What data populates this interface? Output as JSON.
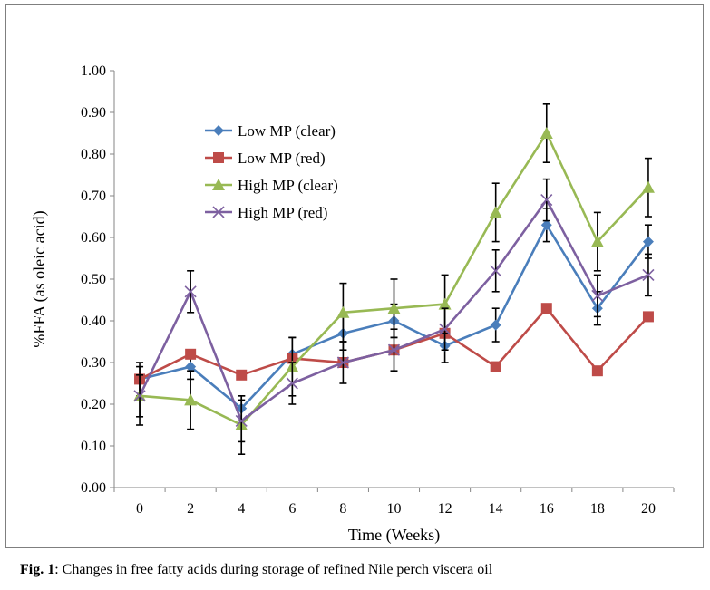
{
  "chart_data": {
    "type": "line",
    "xlabel": "Time (Weeks)",
    "ylabel": "%FFA (as oleic acid)",
    "x": [
      0,
      2,
      4,
      6,
      8,
      10,
      12,
      14,
      16,
      18,
      20
    ],
    "x_tick_labels": [
      "0",
      "2",
      "4",
      "6",
      "8",
      "10",
      "12",
      "14",
      "16",
      "18",
      "20"
    ],
    "ylim": [
      0,
      1
    ],
    "y_tick_labels": [
      "0.00",
      "0.10",
      "0.20",
      "0.30",
      "0.40",
      "0.50",
      "0.60",
      "0.70",
      "0.80",
      "0.90",
      "1.00"
    ],
    "grid": false,
    "legend_position": "top-left",
    "series": [
      {
        "name": "Low MP (clear)",
        "color": "#4a7ebb",
        "marker": "diamond",
        "values": [
          0.26,
          0.29,
          0.19,
          0.32,
          0.37,
          0.4,
          0.34,
          0.39,
          0.63,
          0.43,
          0.59
        ],
        "errors": [
          0.04,
          0.03,
          0.03,
          0.04,
          0.04,
          0.04,
          0.04,
          0.04,
          0.04,
          0.04,
          0.04
        ]
      },
      {
        "name": "Low MP (red)",
        "color": "#be4b48",
        "marker": "square",
        "values": [
          0.26,
          0.32,
          0.27,
          0.31,
          0.3,
          0.33,
          0.37,
          0.29,
          0.43,
          0.28,
          0.41
        ],
        "errors": [
          0.01,
          0.01,
          0.01,
          0.01,
          0.01,
          0.01,
          0.01,
          0.01,
          0.01,
          0.01,
          0.01
        ]
      },
      {
        "name": "High MP (clear)",
        "color": "#98b954",
        "marker": "triangle",
        "values": [
          0.22,
          0.21,
          0.15,
          0.29,
          0.42,
          0.43,
          0.44,
          0.66,
          0.85,
          0.59,
          0.72
        ],
        "errors": [
          0.07,
          0.07,
          0.07,
          0.07,
          0.07,
          0.07,
          0.07,
          0.07,
          0.07,
          0.07,
          0.07
        ]
      },
      {
        "name": "High MP (red)",
        "color": "#7d60a0",
        "marker": "x",
        "values": [
          0.22,
          0.47,
          0.16,
          0.25,
          0.3,
          0.33,
          0.38,
          0.52,
          0.69,
          0.46,
          0.51
        ],
        "errors": [
          0.05,
          0.05,
          0.05,
          0.05,
          0.05,
          0.05,
          0.05,
          0.05,
          0.05,
          0.05,
          0.05
        ]
      }
    ]
  },
  "caption": {
    "lead": "Fig. 1",
    "text": ": Changes in free fatty acids during storage of refined Nile perch viscera oil"
  }
}
